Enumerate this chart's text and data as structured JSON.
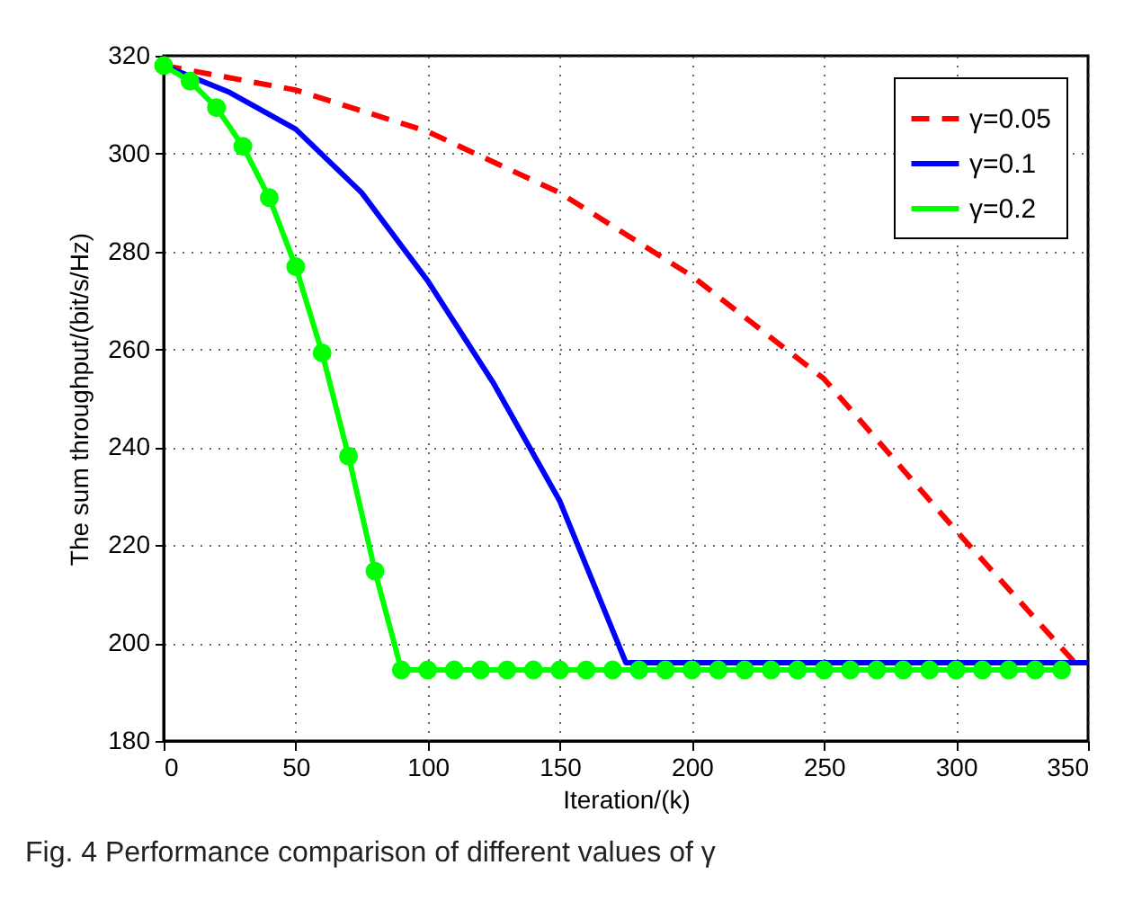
{
  "chart_data": {
    "type": "line",
    "xlabel": "Iteration/(k)",
    "ylabel": "The sum throughput/(bit/s/Hz)",
    "annotations": [
      "Fig. 4 Performance comparison of different values of γ"
    ],
    "xlim": [
      0,
      350
    ],
    "xticks": [
      0,
      50,
      100,
      150,
      200,
      250,
      300,
      350
    ],
    "ylim": [
      180,
      320
    ],
    "yticks": [
      180,
      200,
      220,
      240,
      260,
      280,
      300,
      320
    ],
    "grid": true,
    "legend": "top right",
    "series": [
      {
        "name": "γ=0.05",
        "color": "#ff0000",
        "line_style": "dashed",
        "marker": "none",
        "x": [
          0,
          50,
          100,
          150,
          200,
          250,
          300,
          345
        ],
        "values": [
          318,
          313,
          304.5,
          292,
          275,
          254,
          223,
          196
        ]
      },
      {
        "name": "γ=0.1",
        "color": "#0000ff",
        "line_style": "solid",
        "marker": "none",
        "x": [
          0,
          25,
          50,
          75,
          100,
          125,
          150,
          175,
          350
        ],
        "values": [
          318,
          312.5,
          305,
          292,
          274,
          253,
          229,
          196,
          196
        ]
      },
      {
        "name": "γ=0.2",
        "color": "#00ff00",
        "line_style": "solid",
        "marker": "circle",
        "x": [
          0,
          10,
          20,
          30,
          40,
          50,
          60,
          70,
          80,
          90,
          100,
          110,
          120,
          130,
          140,
          150,
          160,
          170,
          180,
          190,
          200,
          210,
          220,
          230,
          240,
          250,
          260,
          270,
          280,
          290,
          300,
          310,
          320,
          330,
          340
        ],
        "values": [
          318,
          314.8,
          309.4,
          301.5,
          291,
          276.9,
          259.3,
          238.2,
          214.7,
          194.5,
          194.5,
          194.5,
          194.5,
          194.5,
          194.5,
          194.5,
          194.5,
          194.5,
          194.5,
          194.5,
          194.5,
          194.5,
          194.5,
          194.5,
          194.5,
          194.5,
          194.5,
          194.5,
          194.5,
          194.5,
          194.5,
          194.5,
          194.5,
          194.5,
          194.5
        ]
      }
    ]
  }
}
